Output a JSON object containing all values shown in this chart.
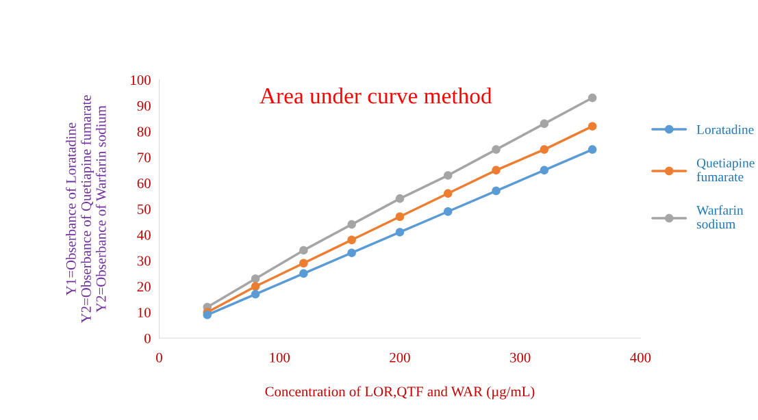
{
  "chart_data": {
    "type": "line",
    "title": "Area under curve method",
    "xlabel": "Concentration of LOR,QTF and WAR (µg/mL)",
    "ylabel": "Y1=Obserbance of Loratadine\nY2=Obserbance of Quetiapine fumarate\nY2=Obserbance of Warfarin sodium",
    "x": [
      40,
      80,
      120,
      160,
      200,
      240,
      280,
      320,
      360
    ],
    "series": [
      {
        "name": "Loratadine",
        "color": "#5b9bd5",
        "values": [
          9,
          17,
          25,
          33,
          41,
          49,
          57,
          65,
          73
        ]
      },
      {
        "name": "Quetiapine\nfumarate",
        "color": "#ed7d31",
        "values": [
          10,
          20,
          29,
          38,
          47,
          56,
          65,
          73,
          82
        ]
      },
      {
        "name": "Warfarin\nsodium",
        "color": "#a5a5a5",
        "values": [
          12,
          23,
          34,
          44,
          54,
          63,
          73,
          83,
          93
        ]
      }
    ],
    "xlim": [
      0,
      400
    ],
    "xticks": [
      0,
      100,
      200,
      300,
      400
    ],
    "ylim": [
      0,
      100
    ],
    "yticks": [
      0,
      10,
      20,
      30,
      40,
      50,
      60,
      70,
      80,
      90,
      100
    ],
    "grid": false,
    "legend": "right",
    "marker": "circle",
    "line_style": "solid"
  }
}
